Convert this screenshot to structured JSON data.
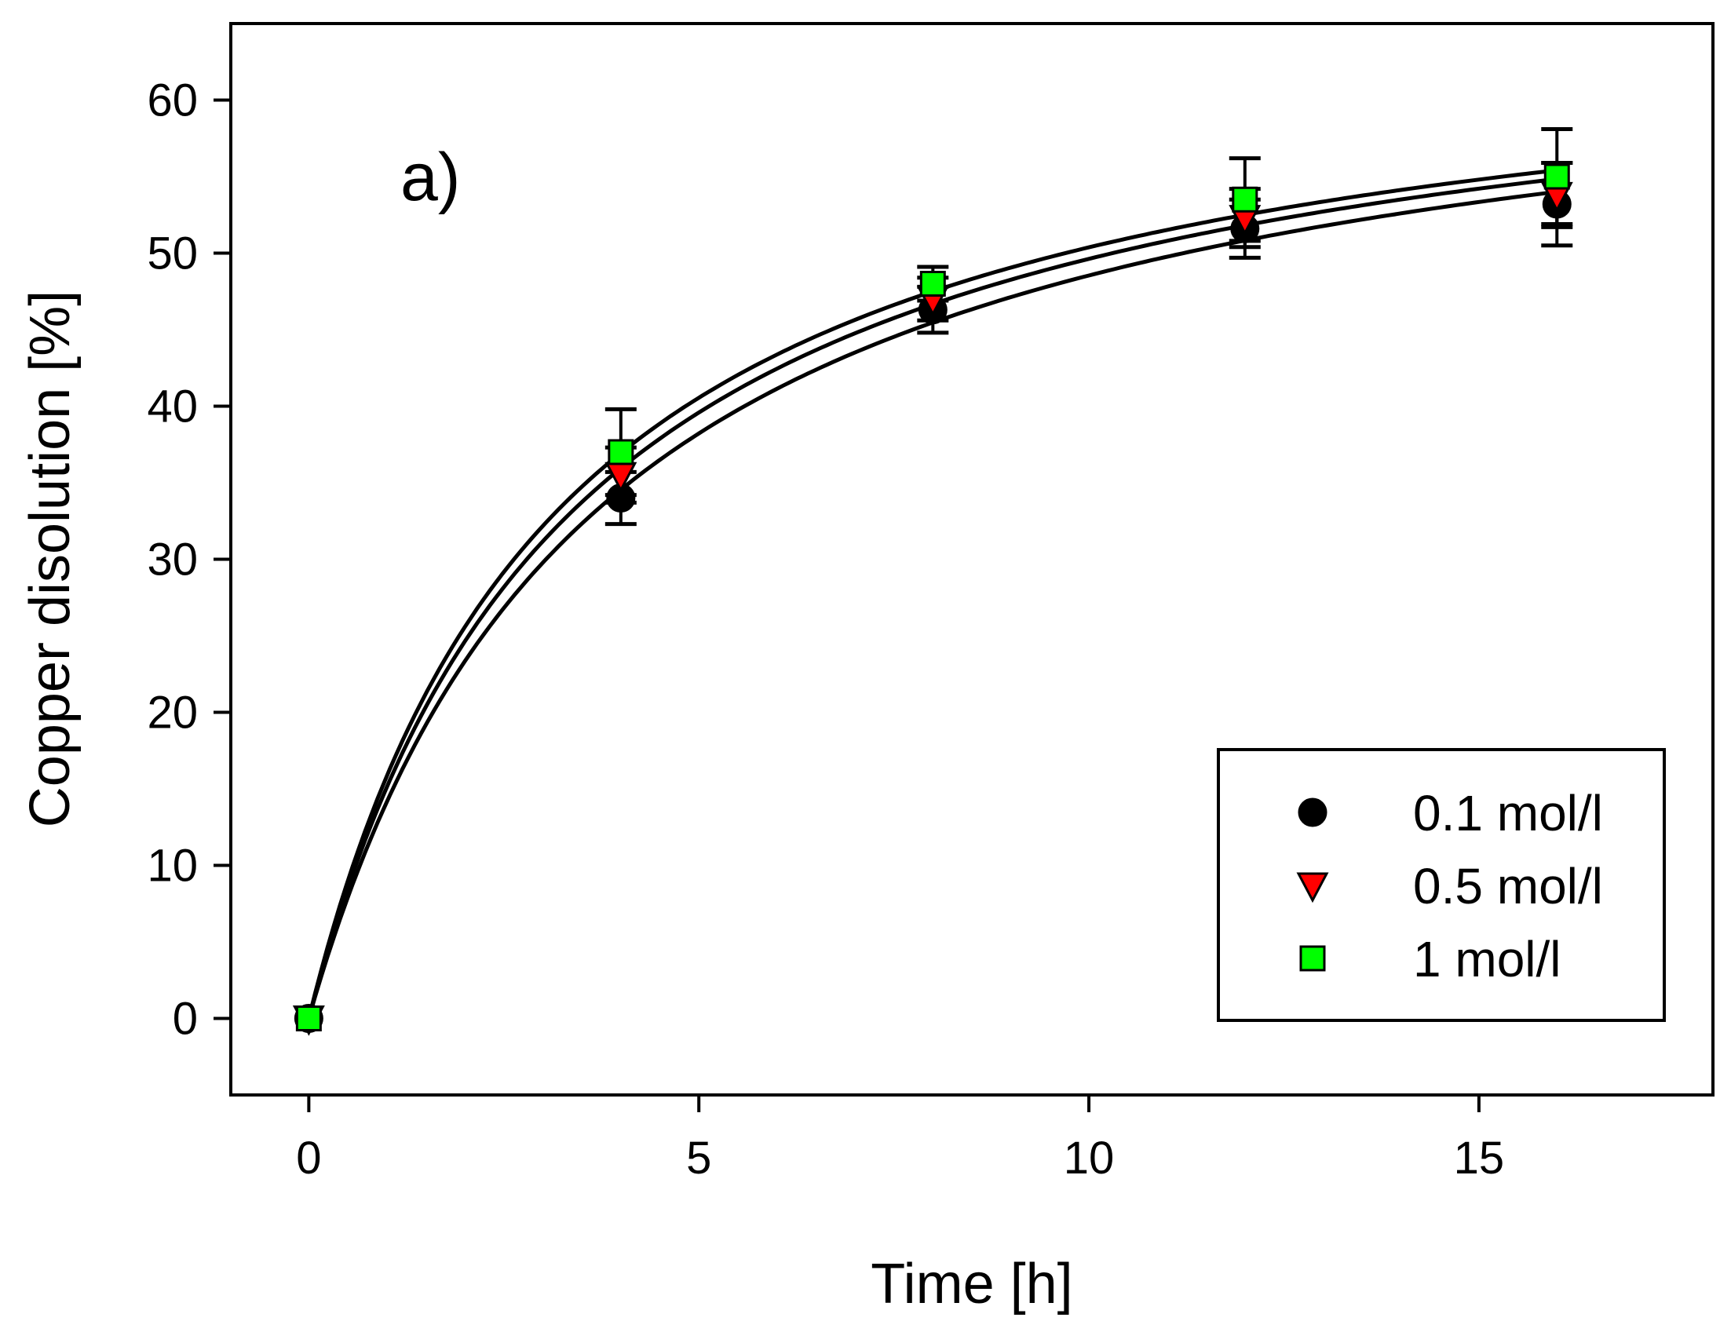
{
  "chart_data": {
    "type": "scatter",
    "title": "",
    "panel_label": "a)",
    "xlabel": "Time [h]",
    "ylabel": "Copper disolution [%]",
    "xlim": [
      -1,
      18
    ],
    "ylim": [
      -5,
      65
    ],
    "xticks": [
      0,
      5,
      10,
      15
    ],
    "xtick_labels": [
      "0",
      "5",
      "10",
      "15"
    ],
    "yticks": [
      0,
      10,
      20,
      30,
      40,
      50,
      60
    ],
    "ytick_labels": [
      "0",
      "10",
      "20",
      "30",
      "40",
      "50",
      "60"
    ],
    "grid": false,
    "legend_position": "bottom-right",
    "x": [
      0,
      4,
      8,
      12,
      16
    ],
    "series": [
      {
        "name": "0.1 mol/l",
        "marker": "circle",
        "color": "#000000",
        "values": [
          0,
          34.0,
          46.3,
          51.6,
          53.2
        ],
        "errors": [
          0,
          1.7,
          1.5,
          1.9,
          2.7
        ],
        "fit": {
          "a": 66.5,
          "b": 3.7
        }
      },
      {
        "name": "0.5 mol/l",
        "marker": "triangle-down",
        "color": "#ff0000",
        "values": [
          0,
          35.5,
          47.0,
          52.3,
          53.8
        ],
        "errors": [
          0,
          1.8,
          1.4,
          1.9,
          2.1
        ],
        "fit": {
          "a": 66.5,
          "b": 3.4
        }
      },
      {
        "name": "1 mol/l",
        "marker": "square",
        "color": "#00ff00",
        "values": [
          0,
          37.0,
          48.0,
          53.5,
          55.0
        ],
        "errors": [
          0,
          2.8,
          1.1,
          2.7,
          3.1
        ],
        "fit": {
          "a": 66.5,
          "b": 3.2
        }
      }
    ]
  }
}
